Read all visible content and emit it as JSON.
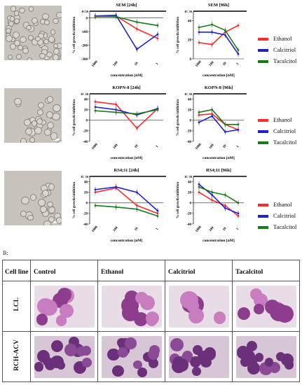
{
  "panel_b_label": "B:",
  "charts": [
    {
      "id": "sem24",
      "title": "SEM [24h]",
      "ylabel": "% cell growth inhibition",
      "xlabel": "concentration [nM]",
      "ic50": "IC50",
      "yticks": [
        "0",
        "-100",
        "-200",
        "-300"
      ],
      "xticks": [
        "1000",
        "100",
        "10",
        "1"
      ],
      "series": [
        {
          "name": "Ethanol",
          "values": [
            10,
            15,
            -80,
            -150
          ]
        },
        {
          "name": "Calcitriol",
          "values": [
            15,
            20,
            -230,
            -120
          ]
        },
        {
          "name": "Tacalcitol",
          "values": [
            12,
            10,
            -30,
            -55
          ]
        }
      ]
    },
    {
      "id": "sem96",
      "title": "SEM [96h]",
      "ylabel": "% cell growth inhibition",
      "xlabel": "concentration [nM]",
      "ic50": "IC 50",
      "yticks": [
        "40",
        "20",
        "0"
      ],
      "xticks": [
        "1000",
        "100",
        "10",
        "1"
      ],
      "series": [
        {
          "name": "Ethanol",
          "values": [
            17,
            15,
            28,
            35
          ]
        },
        {
          "name": "Calcitriol",
          "values": [
            28,
            28,
            25,
            5
          ]
        },
        {
          "name": "Tacalcitol",
          "values": [
            33,
            36,
            30,
            9
          ]
        }
      ]
    },
    {
      "id": "kopn24",
      "title": "KOPN-8 [24h]",
      "ylabel": "% cell growth inhibition",
      "xlabel": "concentration [nM]",
      "ic50": "IC 50",
      "yticks": [
        "40",
        "20",
        "0",
        "-20",
        "-40"
      ],
      "xticks": [
        "1000",
        "100",
        "10",
        "1"
      ],
      "series": [
        {
          "name": "Ethanol",
          "values": [
            35,
            30,
            -15,
            22
          ]
        },
        {
          "name": "Calcitriol",
          "values": [
            25,
            20,
            10,
            22
          ]
        },
        {
          "name": "Tacalcitol",
          "values": [
            18,
            15,
            12,
            20
          ]
        }
      ]
    },
    {
      "id": "kopn96",
      "title": "KOPN-8 [96h]",
      "ylabel": "% cell growth inhibition",
      "xlabel": "concentration [nM]",
      "ic50": "IC 50",
      "yticks": [
        "40",
        "20",
        "0",
        "-20",
        "-40"
      ],
      "xticks": [
        "1000",
        "100",
        "10",
        "1"
      ],
      "series": [
        {
          "name": "Ethanol",
          "values": [
            10,
            12,
            -8,
            -18
          ]
        },
        {
          "name": "Calcitriol",
          "values": [
            -4,
            8,
            -22,
            -18
          ]
        },
        {
          "name": "Tacalcitol",
          "values": [
            15,
            20,
            -8,
            -8
          ]
        }
      ]
    },
    {
      "id": "rs24",
      "title": "RS4;11 [24h]",
      "ylabel": "% cell growth inhibition",
      "xlabel": "concentration [nM]",
      "ic50": "IC 50",
      "yticks": [
        "40",
        "20",
        "0",
        "-20",
        "-40"
      ],
      "xticks": [
        "1000",
        "100",
        "10",
        "1"
      ],
      "series": [
        {
          "name": "Ethanol",
          "values": [
            20,
            28,
            -5,
            -20
          ]
        },
        {
          "name": "Calcitriol",
          "values": [
            25,
            30,
            20,
            -15
          ]
        },
        {
          "name": "Tacalcitol",
          "values": [
            -5,
            -8,
            -12,
            -25
          ]
        }
      ]
    },
    {
      "id": "rs96",
      "title": "RS4;11 [96h]",
      "ylabel": "% cell growth inhibition",
      "xlabel": "concentration [nM]",
      "ic50": "IC 50",
      "yticks": [
        "40",
        "20",
        "0",
        "-20",
        "-40"
      ],
      "xticks": [
        "1000",
        "100",
        "10",
        "1"
      ],
      "series": [
        {
          "name": "Ethanol",
          "values": [
            20,
            5,
            -5,
            -25
          ]
        },
        {
          "name": "Calcitriol",
          "values": [
            35,
            15,
            -10,
            -20
          ]
        },
        {
          "name": "Tacalcitol",
          "values": [
            30,
            20,
            15,
            0
          ]
        }
      ]
    }
  ],
  "legend": [
    {
      "label": "Ethanol",
      "color": "#ff2a2a"
    },
    {
      "label": "Calcitriol",
      "color": "#2020d0"
    },
    {
      "label": "Tacalcitol",
      "color": "#1a7a1a"
    }
  ],
  "table": {
    "corner": "Cell line",
    "columns": [
      "Control",
      "Ethanol",
      "Calcitriol",
      "Tacalcitol"
    ],
    "rows": [
      "LCL",
      "RCH-ACV"
    ]
  },
  "chart_data": [
    {
      "type": "line",
      "title": "SEM [24h]",
      "xlabel": "concentration [nM]",
      "ylabel": "% cell growth inhibition",
      "categories": [
        "1000",
        "100",
        "10",
        "1"
      ],
      "ylim": [
        -300,
        50
      ],
      "series": [
        {
          "name": "Ethanol",
          "values": [
            10,
            15,
            -80,
            -150
          ]
        },
        {
          "name": "Calcitriol",
          "values": [
            15,
            20,
            -230,
            -120
          ]
        },
        {
          "name": "Tacalcitol",
          "values": [
            12,
            10,
            -30,
            -55
          ]
        }
      ]
    },
    {
      "type": "line",
      "title": "SEM [96h]",
      "xlabel": "concentration [nM]",
      "ylabel": "% cell growth inhibition",
      "categories": [
        "1000",
        "100",
        "10",
        "1"
      ],
      "ylim": [
        0,
        50
      ],
      "series": [
        {
          "name": "Ethanol",
          "values": [
            17,
            15,
            28,
            35
          ]
        },
        {
          "name": "Calcitriol",
          "values": [
            28,
            28,
            25,
            5
          ]
        },
        {
          "name": "Tacalcitol",
          "values": [
            33,
            36,
            30,
            9
          ]
        }
      ]
    },
    {
      "type": "line",
      "title": "KOPN-8 [24h]",
      "xlabel": "concentration [nM]",
      "ylabel": "% cell growth inhibition",
      "categories": [
        "1000",
        "100",
        "10",
        "1"
      ],
      "ylim": [
        -40,
        50
      ],
      "series": [
        {
          "name": "Ethanol",
          "values": [
            35,
            30,
            -15,
            22
          ]
        },
        {
          "name": "Calcitriol",
          "values": [
            25,
            20,
            10,
            22
          ]
        },
        {
          "name": "Tacalcitol",
          "values": [
            18,
            15,
            12,
            20
          ]
        }
      ]
    },
    {
      "type": "line",
      "title": "KOPN-8 [96h]",
      "xlabel": "concentration [nM]",
      "ylabel": "% cell growth inhibition",
      "categories": [
        "1000",
        "100",
        "10",
        "1"
      ],
      "ylim": [
        -40,
        50
      ],
      "series": [
        {
          "name": "Ethanol",
          "values": [
            10,
            12,
            -8,
            -18
          ]
        },
        {
          "name": "Calcitriol",
          "values": [
            -4,
            8,
            -22,
            -18
          ]
        },
        {
          "name": "Tacalcitol",
          "values": [
            15,
            20,
            -8,
            -8
          ]
        }
      ]
    },
    {
      "type": "line",
      "title": "RS4;11 [24h]",
      "xlabel": "concentration [nM]",
      "ylabel": "% cell growth inhibition",
      "categories": [
        "1000",
        "100",
        "10",
        "1"
      ],
      "ylim": [
        -40,
        50
      ],
      "series": [
        {
          "name": "Ethanol",
          "values": [
            20,
            28,
            -5,
            -20
          ]
        },
        {
          "name": "Calcitriol",
          "values": [
            25,
            30,
            20,
            -15
          ]
        },
        {
          "name": "Tacalcitol",
          "values": [
            -5,
            -8,
            -12,
            -25
          ]
        }
      ]
    },
    {
      "type": "line",
      "title": "RS4;11 [96h]",
      "xlabel": "concentration [nM]",
      "ylabel": "% cell growth inhibition",
      "categories": [
        "1000",
        "100",
        "10",
        "1"
      ],
      "ylim": [
        -40,
        50
      ],
      "series": [
        {
          "name": "Ethanol",
          "values": [
            20,
            5,
            -5,
            -25
          ]
        },
        {
          "name": "Calcitriol",
          "values": [
            35,
            15,
            -10,
            -20
          ]
        },
        {
          "name": "Tacalcitol",
          "values": [
            30,
            20,
            15,
            0
          ]
        }
      ]
    }
  ]
}
